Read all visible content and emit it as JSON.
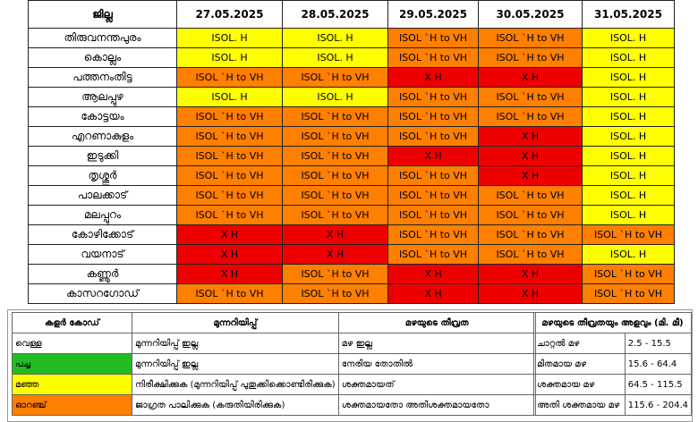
{
  "table": {
    "header_district": "ജില്ല",
    "dates": [
      "27.05.2025",
      "28.05.2025",
      "29.05.2025",
      "30.05.2025",
      "31.05.2025"
    ],
    "rows": [
      {
        "district": "തിരുവനന്തപുരം",
        "cells": [
          [
            "ISOL. H",
            "yellow"
          ],
          [
            "ISOL. H",
            "yellow"
          ],
          [
            "ISOL `H to VH",
            "orange"
          ],
          [
            "ISOL `H to VH",
            "orange"
          ],
          [
            "ISOL. H",
            "yellow"
          ]
        ]
      },
      {
        "district": "കൊല്ലം",
        "cells": [
          [
            "ISOL. H",
            "yellow"
          ],
          [
            "ISOL. H",
            "yellow"
          ],
          [
            "ISOL `H to VH",
            "orange"
          ],
          [
            "ISOL `H to VH",
            "orange"
          ],
          [
            "ISOL. H",
            "yellow"
          ]
        ]
      },
      {
        "district": "പത്തനംതിട്ട",
        "cells": [
          [
            "ISOL `H to VH",
            "orange"
          ],
          [
            "ISOL `H to VH",
            "orange"
          ],
          [
            "X H",
            "red"
          ],
          [
            "X H",
            "red"
          ],
          [
            "ISOL. H",
            "yellow"
          ]
        ]
      },
      {
        "district": "ആലപ്പുഴ",
        "cells": [
          [
            "ISOL. H",
            "yellow"
          ],
          [
            "ISOL. H",
            "yellow"
          ],
          [
            "ISOL `H to VH",
            "orange"
          ],
          [
            "ISOL `H to VH",
            "orange"
          ],
          [
            "ISOL. H",
            "yellow"
          ]
        ]
      },
      {
        "district": "കോട്ടയം",
        "cells": [
          [
            "ISOL `H to VH",
            "orange"
          ],
          [
            "ISOL `H to VH",
            "orange"
          ],
          [
            "ISOL `H to VH",
            "orange"
          ],
          [
            "ISOL `H to VH",
            "orange"
          ],
          [
            "ISOL. H",
            "yellow"
          ]
        ]
      },
      {
        "district": "എറണാകുളം",
        "cells": [
          [
            "ISOL `H to VH",
            "orange"
          ],
          [
            "ISOL `H to VH",
            "orange"
          ],
          [
            "ISOL `H to VH",
            "orange"
          ],
          [
            "X H",
            "red"
          ],
          [
            "ISOL. H",
            "yellow"
          ]
        ]
      },
      {
        "district": "ഇടുക്കി",
        "cells": [
          [
            "ISOL `H to VH",
            "orange"
          ],
          [
            "ISOL `H to VH",
            "orange"
          ],
          [
            "X H",
            "red"
          ],
          [
            "X H",
            "red"
          ],
          [
            "ISOL. H",
            "yellow"
          ]
        ]
      },
      {
        "district": "തൃശ്ശൂർ",
        "cells": [
          [
            "ISOL `H to VH",
            "orange"
          ],
          [
            "ISOL `H to VH",
            "orange"
          ],
          [
            "ISOL `H to VH",
            "orange"
          ],
          [
            "X H",
            "red"
          ],
          [
            "ISOL. H",
            "yellow"
          ]
        ]
      },
      {
        "district": "പാലക്കാട്",
        "cells": [
          [
            "ISOL `H to VH",
            "orange"
          ],
          [
            "ISOL `H to VH",
            "orange"
          ],
          [
            "ISOL `H to VH",
            "orange"
          ],
          [
            "ISOL `H to VH",
            "orange"
          ],
          [
            "ISOL. H",
            "yellow"
          ]
        ]
      },
      {
        "district": "മലപ്പുറം",
        "cells": [
          [
            "ISOL `H to VH",
            "orange"
          ],
          [
            "ISOL `H to VH",
            "orange"
          ],
          [
            "ISOL `H to VH",
            "orange"
          ],
          [
            "ISOL `H to VH",
            "orange"
          ],
          [
            "ISOL. H",
            "yellow"
          ]
        ]
      },
      {
        "district": "കോഴിക്കോട്",
        "cells": [
          [
            "X H",
            "red"
          ],
          [
            "X H",
            "red"
          ],
          [
            "ISOL `H to VH",
            "orange"
          ],
          [
            "ISOL `H to VH",
            "orange"
          ],
          [
            "ISOL `H to VH",
            "orange"
          ]
        ]
      },
      {
        "district": "വയനാട്",
        "cells": [
          [
            "X H",
            "red"
          ],
          [
            "X H",
            "red"
          ],
          [
            "ISOL `H to VH",
            "orange"
          ],
          [
            "ISOL `H to VH",
            "orange"
          ],
          [
            "ISOL. H",
            "yellow"
          ]
        ]
      },
      {
        "district": "കണ്ണൂർ",
        "cells": [
          [
            "X H",
            "red"
          ],
          [
            "ISOL `H to VH",
            "orange"
          ],
          [
            "X H",
            "red"
          ],
          [
            "X H",
            "red"
          ],
          [
            "ISOL `H to VH",
            "orange"
          ]
        ]
      },
      {
        "district": "കാസറഗോഡ്",
        "cells": [
          [
            "ISOL `H to VH",
            "orange"
          ],
          [
            "ISOL `H to VH",
            "orange"
          ],
          [
            "X H",
            "red"
          ],
          [
            "X H",
            "red"
          ],
          [
            "ISOL `H to VH",
            "orange"
          ]
        ]
      }
    ]
  },
  "legend": {
    "headers": [
      "കളർ കോഡ്",
      "മുന്നറിയിപ്പ്",
      "മഴയുടെ തീവ്രത"
    ],
    "rows": [
      {
        "color_name": "വെള്ള",
        "swatch": "white",
        "warning": "മുന്നറിയിപ്പ് ഇല്ല",
        "intensity": "മഴ ഇല്ല"
      },
      {
        "color_name": "പച്ച",
        "swatch": "green",
        "warning": "മുന്നറിയിപ്പ് ഇല്ല",
        "intensity": "നേരിയ തോതിൽ"
      },
      {
        "color_name": "മഞ്ഞ",
        "swatch": "yellow",
        "warning": "നിരീക്ഷിക്കുക (മുന്നറിയിപ്പ് പുതുക്കിക്കൊണ്ടിരിക്കുക)",
        "intensity": "ശക്തമായത്"
      },
      {
        "color_name": "ഓറഞ്ച്",
        "swatch": "orange",
        "warning": "ജാഗ്രത പാലിക്കുക (കരുതിയിരിക്കുക)",
        "intensity": "ശക്തമായതോ അതിശക്തമായതോ"
      }
    ],
    "scale_header": "മഴയുടെ തീവ്രതയും അളവും (മി. മീ)",
    "scale_rows": [
      {
        "name": "ചാറ്റൽ മഴ",
        "range": "2.5 - 15.5"
      },
      {
        "name": "മിതമായ മഴ",
        "range": "15.6 - 64.4"
      },
      {
        "name": "ശക്തമായ മഴ",
        "range": "64.5 - 115.5"
      },
      {
        "name": "അതി ശക്തമായ മഴ",
        "range": "115.6 - 204.4"
      }
    ]
  },
  "colors": {
    "yellow": "#ffff00",
    "orange": "#ff7f00",
    "red": "#ee0000",
    "green": "#22bb22"
  }
}
